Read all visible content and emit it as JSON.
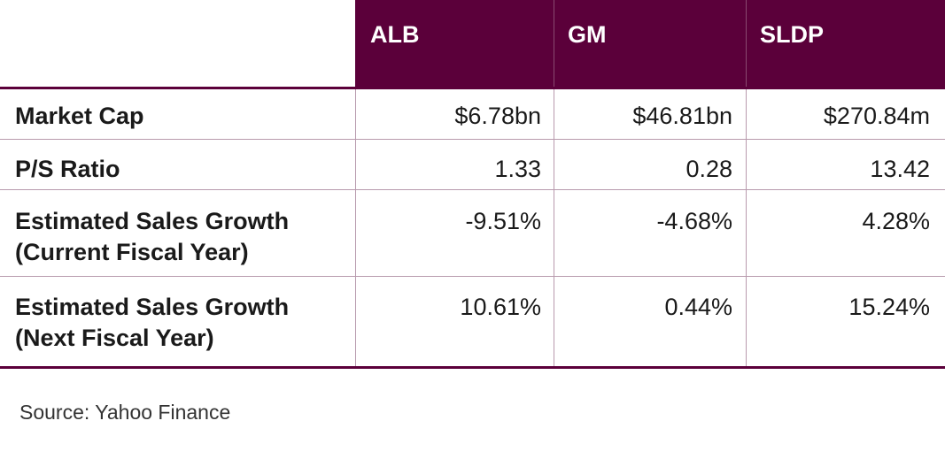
{
  "chart_data": {
    "type": "table",
    "columns": [
      "ALB",
      "GM",
      "SLDP"
    ],
    "rows": [
      {
        "label": "Market Cap",
        "values": [
          "$6.78bn",
          "$46.81bn",
          "$270.84m"
        ]
      },
      {
        "label": "P/S Ratio",
        "values": [
          "1.33",
          "0.28",
          "13.42"
        ]
      },
      {
        "label_lines": [
          "Estimated Sales Growth",
          "(Current Fiscal Year)"
        ],
        "values": [
          "-9.51%",
          "-4.68%",
          "4.28%"
        ]
      },
      {
        "label_lines": [
          "Estimated Sales Growth",
          "(Next Fiscal Year)"
        ],
        "values": [
          "10.61%",
          "0.44%",
          "15.24%"
        ]
      }
    ],
    "source": "Source: Yahoo Finance"
  },
  "colors": {
    "header_background": "#5b003a",
    "header_text": "#ffffff",
    "rule": "#5b003a",
    "separator": "#b89aad"
  }
}
